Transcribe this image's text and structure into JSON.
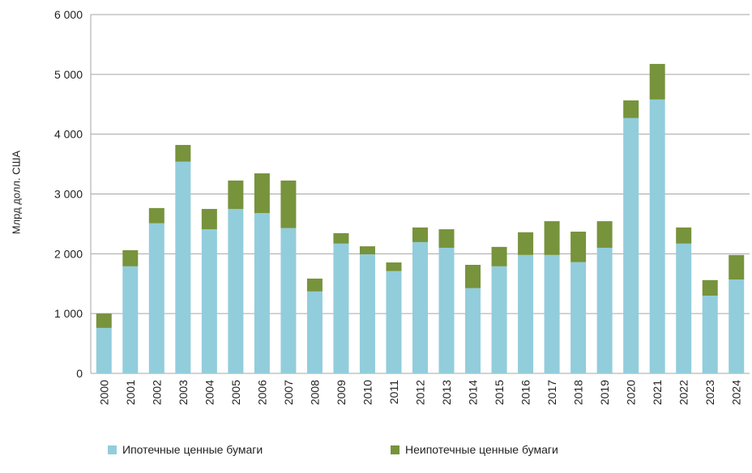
{
  "chart_data": {
    "type": "bar",
    "stacked": true,
    "title": "",
    "xlabel": "",
    "ylabel": "Млрд долл. США",
    "ylim": [
      0,
      6000
    ],
    "yticks": [
      0,
      1000,
      2000,
      3000,
      4000,
      5000,
      6000
    ],
    "ytick_labels": [
      "0",
      "1 000",
      "2 000",
      "3 000",
      "4 000",
      "5 000",
      "6 000"
    ],
    "grid": true,
    "legend_position": "bottom",
    "categories": [
      "2000",
      "2001",
      "2002",
      "2003",
      "2004",
      "2005",
      "2006",
      "2007",
      "2008",
      "2009",
      "2010",
      "2011",
      "2012",
      "2013",
      "2014",
      "2015",
      "2016",
      "2017",
      "2018",
      "2019",
      "2020",
      "2021",
      "2022",
      "2023",
      "2024"
    ],
    "series": [
      {
        "name": "Ипотечные ценные бумаги",
        "color": "#92CDDC",
        "values": [
          760,
          1790,
          2510,
          3540,
          2410,
          2750,
          2680,
          2430,
          1370,
          2170,
          1990,
          1710,
          2195,
          2100,
          1425,
          1790,
          1980,
          1980,
          1860,
          2100,
          4270,
          4580,
          2170,
          1300,
          1570
        ]
      },
      {
        "name": "Неипотечные ценные бумаги",
        "color": "#77933C",
        "values": [
          240,
          270,
          255,
          280,
          340,
          475,
          665,
          795,
          215,
          175,
          135,
          145,
          245,
          310,
          390,
          325,
          380,
          565,
          510,
          445,
          295,
          595,
          270,
          260,
          410
        ]
      }
    ]
  }
}
